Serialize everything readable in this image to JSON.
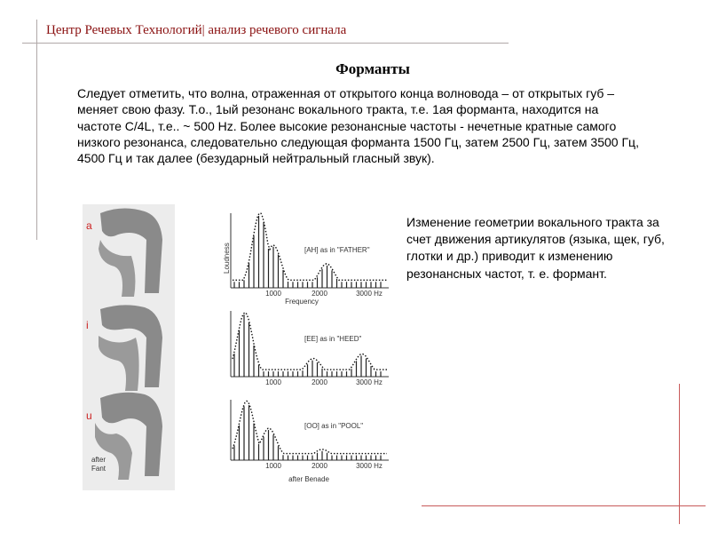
{
  "header": {
    "text": "Центр Речевых Технологий| анализ речевого сигнала"
  },
  "slide": {
    "title": "Форманты",
    "body": "Следует отметить, что волна, отраженная от открытого конца волновода – от открытых губ – меняет свою фазу. Т.о., 1ый резонанс вокального тракта, т.е. 1ая форманта, находится на частоте C/4L, т.е.. ~ 500 Hz.  Более высокие резонансные частоты - нечетные кратные самого низкого резонанса, следовательно следующая форманта 1500 Гц, затем 2500 Гц, затем 3500 Гц, 4500 Гц и так далее (безударный нейтральный гласный звук).",
    "side_note": "Изменение геометрии вокального тракта за счет движения артикулятов (языка, щек, губ, глотки и др.) приводит к изменению резонансных частот, т. е. формант."
  },
  "figure": {
    "vowel_letters": [
      "a",
      "i",
      "u"
    ],
    "tract_credit": "after\nFant",
    "spectra": [
      {
        "label": "[AH] as in \"FATHER\"",
        "ticks": [
          "1000",
          "2000",
          "3000 Hz"
        ],
        "ylabel": "Loudness",
        "xlabel": "Frequency"
      },
      {
        "label": "[EE] as in \"HEED\"",
        "ticks": [
          "1000",
          "2000",
          "3000 Hz"
        ]
      },
      {
        "label": "[OO] as in \"POOL\"",
        "ticks": [
          "1000",
          "2000",
          "3000 Hz"
        ]
      }
    ],
    "spectra_credit": "after Benade"
  }
}
